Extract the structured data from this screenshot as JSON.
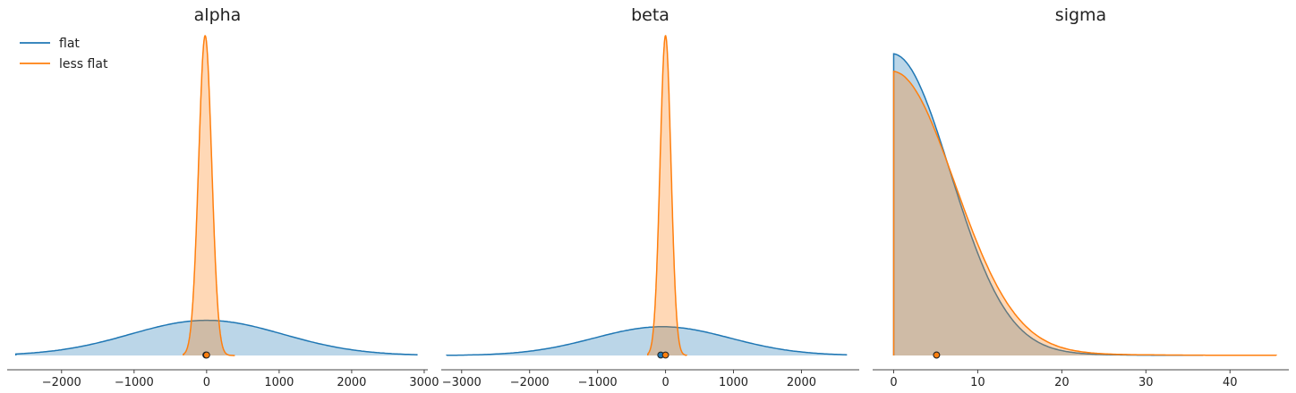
{
  "colors": {
    "flat": "#1f77b4",
    "less_flat": "#ff7f0e"
  },
  "chart_data": [
    {
      "type": "area",
      "title": "alpha",
      "xlim": [
        -2750,
        3050
      ],
      "ylim": [
        0,
        1
      ],
      "xticks": [
        -2000,
        -1000,
        0,
        1000,
        2000,
        3000
      ],
      "xtick_labels": [
        "−2000",
        "−1000",
        "0",
        "1000",
        "2000",
        "3000"
      ],
      "legend": {
        "location": "upper left",
        "entries": [
          "flat",
          "less flat"
        ]
      },
      "series": [
        {
          "name": "flat",
          "kind": "gaussian",
          "range": [
            -2630,
            2900
          ],
          "mu": 0,
          "sigma": 1050,
          "peak": 0.11,
          "hdi": [
            -2630,
            2900
          ],
          "point_estimate": -10
        },
        {
          "name": "less flat",
          "kind": "gaussian",
          "range": [
            -320,
            390
          ],
          "mu": -20,
          "sigma": 90,
          "peak": 1.0,
          "hdi": [
            -320,
            390
          ],
          "point_estimate": 0
        }
      ]
    },
    {
      "type": "area",
      "title": "beta",
      "xlim": [
        -3300,
        2850
      ],
      "ylim": [
        0,
        1
      ],
      "xticks": [
        -3000,
        -2000,
        -1000,
        0,
        1000,
        2000
      ],
      "xtick_labels": [
        "−3000",
        "−2000",
        "−1000",
        "0",
        "1000",
        "2000"
      ],
      "legend": null,
      "series": [
        {
          "name": "flat",
          "kind": "gaussian",
          "range": [
            -3220,
            2660
          ],
          "mu": -50,
          "sigma": 1000,
          "peak": 0.09,
          "hdi": [
            -3220,
            2660
          ],
          "point_estimate": -70
        },
        {
          "name": "less flat",
          "kind": "gaussian",
          "range": [
            -260,
            310
          ],
          "mu": 0,
          "sigma": 80,
          "peak": 1.0,
          "hdi": [
            -260,
            310
          ],
          "point_estimate": 0
        }
      ]
    },
    {
      "type": "area",
      "title": "sigma",
      "xlim": [
        -2.5,
        47
      ],
      "ylim": [
        0,
        1.06
      ],
      "xticks": [
        0,
        10,
        20,
        30,
        40
      ],
      "xtick_labels": [
        "0",
        "10",
        "20",
        "30",
        "40"
      ],
      "legend": null,
      "series": [
        {
          "name": "flat",
          "kind": "halfnormal",
          "range": [
            0,
            36.8
          ],
          "scale": 6.8,
          "tail": 0.03,
          "tail_scale": 9,
          "peak": 1.0,
          "point_estimate": 5.1
        },
        {
          "name": "less flat",
          "kind": "halfnormal",
          "range": [
            0,
            45.5
          ],
          "scale": 7.3,
          "tail": 0.03,
          "tail_scale": 11,
          "peak": 0.94,
          "point_estimate": 5.1
        }
      ]
    }
  ]
}
